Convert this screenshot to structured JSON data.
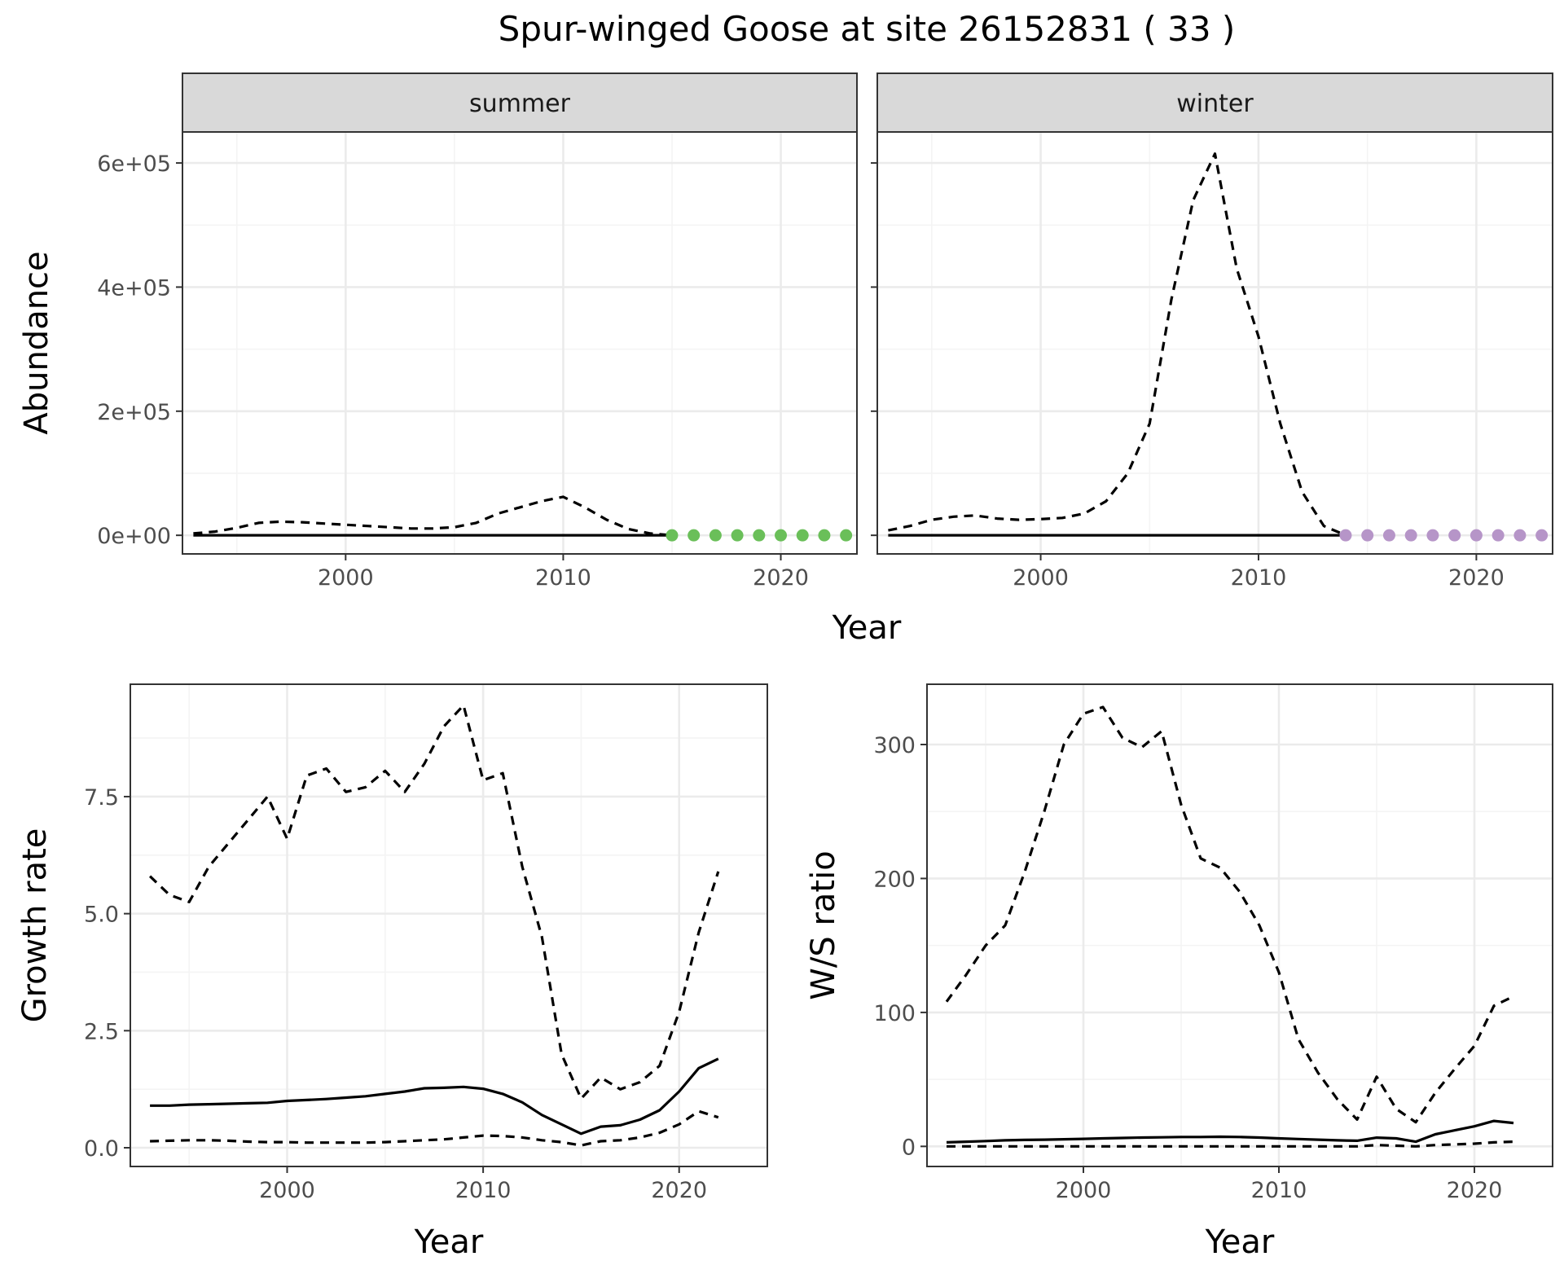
{
  "figure": {
    "title": "Spur-winged Goose at site 26152831 ( 33 )"
  },
  "colors": {
    "summer_points": "#6ABF59",
    "winter_points": "#B695C8",
    "line": "#000000",
    "strip_bg": "#D9D9D9",
    "grid_major": "#EBEBEB",
    "grid_minor": "#F4F4F4",
    "panel_border": "#333333"
  },
  "chart_data": [
    {
      "id": "abundance",
      "type": "line",
      "title": "",
      "xlabel": "Year",
      "ylabel": "Abundance",
      "facets": [
        "summer",
        "winter"
      ],
      "xlim": [
        1992.5,
        2023.5
      ],
      "ylim": [
        -30000,
        650000
      ],
      "x_ticks": [
        2000,
        2010,
        2020
      ],
      "y_ticks": [
        0,
        200000,
        400000,
        600000
      ],
      "y_tick_labels": [
        "0e+00",
        "2e+05",
        "4e+05",
        "6e+05"
      ],
      "grid": true,
      "legend": "none",
      "panels": [
        {
          "facet": "summer",
          "series": [
            {
              "style": "dashed",
              "x": [
                1993,
                1994,
                1995,
                1996,
                1997,
                1998,
                1999,
                2000,
                2001,
                2002,
                2003,
                2004,
                2005,
                2006,
                2007,
                2008,
                2009,
                2010,
                2011,
                2012,
                2013,
                2014,
                2015
              ],
              "y": [
                3000,
                6000,
                12000,
                20000,
                22000,
                21000,
                19000,
                17000,
                15000,
                13000,
                11000,
                11000,
                13000,
                20000,
                35000,
                45000,
                55000,
                62000,
                45000,
                25000,
                10000,
                3000,
                0
              ]
            },
            {
              "style": "solid",
              "x": [
                1993,
                2000,
                2005,
                2010,
                2015
              ],
              "y": [
                0,
                0,
                0,
                0,
                0
              ]
            },
            {
              "style": "points",
              "color_key": "summer_points",
              "x": [
                2015,
                2016,
                2017,
                2018,
                2019,
                2020,
                2021,
                2022,
                2023
              ],
              "y": [
                0,
                0,
                0,
                0,
                0,
                0,
                0,
                0,
                0
              ]
            }
          ]
        },
        {
          "facet": "winter",
          "series": [
            {
              "style": "dashed",
              "x": [
                1993,
                1994,
                1995,
                1996,
                1997,
                1998,
                1999,
                2000,
                2001,
                2002,
                2003,
                2004,
                2005,
                2006,
                2007,
                2008,
                2009,
                2010,
                2011,
                2012,
                2013,
                2014
              ],
              "y": [
                8000,
                15000,
                25000,
                30000,
                32000,
                27000,
                25000,
                26000,
                28000,
                35000,
                55000,
                100000,
                180000,
                380000,
                540000,
                615000,
                430000,
                320000,
                180000,
                70000,
                15000,
                0
              ]
            },
            {
              "style": "solid",
              "x": [
                1993,
                2000,
                2005,
                2010,
                2014
              ],
              "y": [
                0,
                0,
                0,
                0,
                0
              ]
            },
            {
              "style": "points",
              "color_key": "winter_points",
              "x": [
                2014,
                2015,
                2016,
                2017,
                2018,
                2019,
                2020,
                2021,
                2022,
                2023
              ],
              "y": [
                0,
                0,
                0,
                0,
                0,
                0,
                0,
                0,
                0,
                0
              ]
            }
          ]
        }
      ]
    },
    {
      "id": "growth",
      "type": "line",
      "title": "",
      "xlabel": "Year",
      "ylabel": "Growth rate",
      "xlim": [
        1992,
        2024.5
      ],
      "ylim": [
        -0.4,
        9.9
      ],
      "x_ticks": [
        2000,
        2010,
        2020
      ],
      "y_ticks": [
        0,
        2.5,
        5,
        7.5
      ],
      "y_tick_labels": [
        "0.0",
        "2.5",
        "5.0",
        "7.5"
      ],
      "grid": true,
      "legend": "none",
      "series": [
        {
          "style": "dashed",
          "x": [
            1993,
            1994,
            1995,
            1996,
            1997,
            1998,
            1999,
            2000,
            2001,
            2002,
            2003,
            2004,
            2005,
            2006,
            2007,
            2008,
            2009,
            2010,
            2011,
            2012,
            2013,
            2014,
            2015,
            2016,
            2017,
            2018,
            2019,
            2020,
            2021,
            2022
          ],
          "y": [
            5.8,
            5.4,
            5.25,
            6.0,
            6.5,
            7.0,
            7.5,
            6.6,
            7.95,
            8.1,
            7.6,
            7.7,
            8.05,
            7.6,
            8.2,
            9.0,
            9.45,
            7.85,
            8.0,
            6.0,
            4.5,
            2.0,
            1.05,
            1.5,
            1.25,
            1.4,
            1.75,
            2.9,
            4.6,
            5.9
          ]
        },
        {
          "style": "solid",
          "x": [
            1993,
            1994,
            1995,
            1996,
            1997,
            1998,
            1999,
            2000,
            2001,
            2002,
            2003,
            2004,
            2005,
            2006,
            2007,
            2008,
            2009,
            2010,
            2011,
            2012,
            2013,
            2014,
            2015,
            2016,
            2017,
            2018,
            2019,
            2020,
            2021,
            2022
          ],
          "y": [
            0.9,
            0.9,
            0.92,
            0.93,
            0.94,
            0.95,
            0.96,
            1.0,
            1.02,
            1.04,
            1.07,
            1.1,
            1.15,
            1.2,
            1.27,
            1.28,
            1.3,
            1.26,
            1.15,
            0.97,
            0.7,
            0.5,
            0.3,
            0.45,
            0.48,
            0.6,
            0.8,
            1.2,
            1.7,
            1.9
          ]
        },
        {
          "style": "dashed",
          "x": [
            1993,
            1994,
            1995,
            1996,
            1997,
            1998,
            1999,
            2000,
            2001,
            2002,
            2003,
            2004,
            2005,
            2006,
            2007,
            2008,
            2009,
            2010,
            2011,
            2012,
            2013,
            2014,
            2015,
            2016,
            2017,
            2018,
            2019,
            2020,
            2021,
            2022
          ],
          "y": [
            0.14,
            0.15,
            0.16,
            0.16,
            0.15,
            0.13,
            0.12,
            0.12,
            0.11,
            0.11,
            0.11,
            0.11,
            0.12,
            0.14,
            0.16,
            0.18,
            0.22,
            0.26,
            0.25,
            0.22,
            0.16,
            0.12,
            0.05,
            0.14,
            0.16,
            0.22,
            0.32,
            0.5,
            0.78,
            0.65
          ]
        }
      ]
    },
    {
      "id": "ws_ratio",
      "type": "line",
      "title": "",
      "xlabel": "Year",
      "ylabel": "W/S ratio",
      "xlim": [
        1992,
        2024
      ],
      "ylim": [
        -15,
        345
      ],
      "x_ticks": [
        2000,
        2010,
        2020
      ],
      "y_ticks": [
        0,
        100,
        200,
        300
      ],
      "y_tick_labels": [
        "0",
        "100",
        "200",
        "300"
      ],
      "grid": true,
      "legend": "none",
      "series": [
        {
          "style": "dashed",
          "x": [
            1993,
            1994,
            1995,
            1996,
            1997,
            1998,
            1999,
            2000,
            2001,
            2002,
            2003,
            2004,
            2005,
            2006,
            2007,
            2008,
            2009,
            2010,
            2011,
            2012,
            2013,
            2014,
            2015,
            2016,
            2017,
            2018,
            2019,
            2020,
            2021,
            2022
          ],
          "y": [
            108,
            128,
            150,
            165,
            205,
            250,
            300,
            323,
            328,
            305,
            298,
            310,
            255,
            215,
            208,
            190,
            165,
            130,
            80,
            55,
            35,
            20,
            52,
            28,
            18,
            40,
            58,
            75,
            105,
            112
          ]
        },
        {
          "style": "solid",
          "x": [
            1993,
            1994,
            1995,
            1996,
            1997,
            1998,
            1999,
            2000,
            2001,
            2002,
            2003,
            2004,
            2005,
            2006,
            2007,
            2008,
            2009,
            2010,
            2011,
            2012,
            2013,
            2014,
            2015,
            2016,
            2017,
            2018,
            2019,
            2020,
            2021,
            2022
          ],
          "y": [
            3,
            3.5,
            4,
            4.5,
            4.8,
            5,
            5.3,
            5.6,
            6,
            6.3,
            6.6,
            6.8,
            7,
            7,
            7.2,
            7,
            6.6,
            6,
            5.5,
            5,
            4.5,
            4.2,
            6.5,
            6,
            3.5,
            9,
            12,
            15,
            19,
            17.5
          ]
        },
        {
          "style": "dashed",
          "x": [
            1993,
            1995,
            2000,
            2005,
            2010,
            2014,
            2015,
            2016,
            2017,
            2018,
            2019,
            2020,
            2021,
            2022
          ],
          "y": [
            0,
            0,
            0,
            0,
            0,
            0,
            1,
            0.5,
            0,
            1,
            1.5,
            2,
            3,
            3.5
          ]
        }
      ]
    }
  ]
}
